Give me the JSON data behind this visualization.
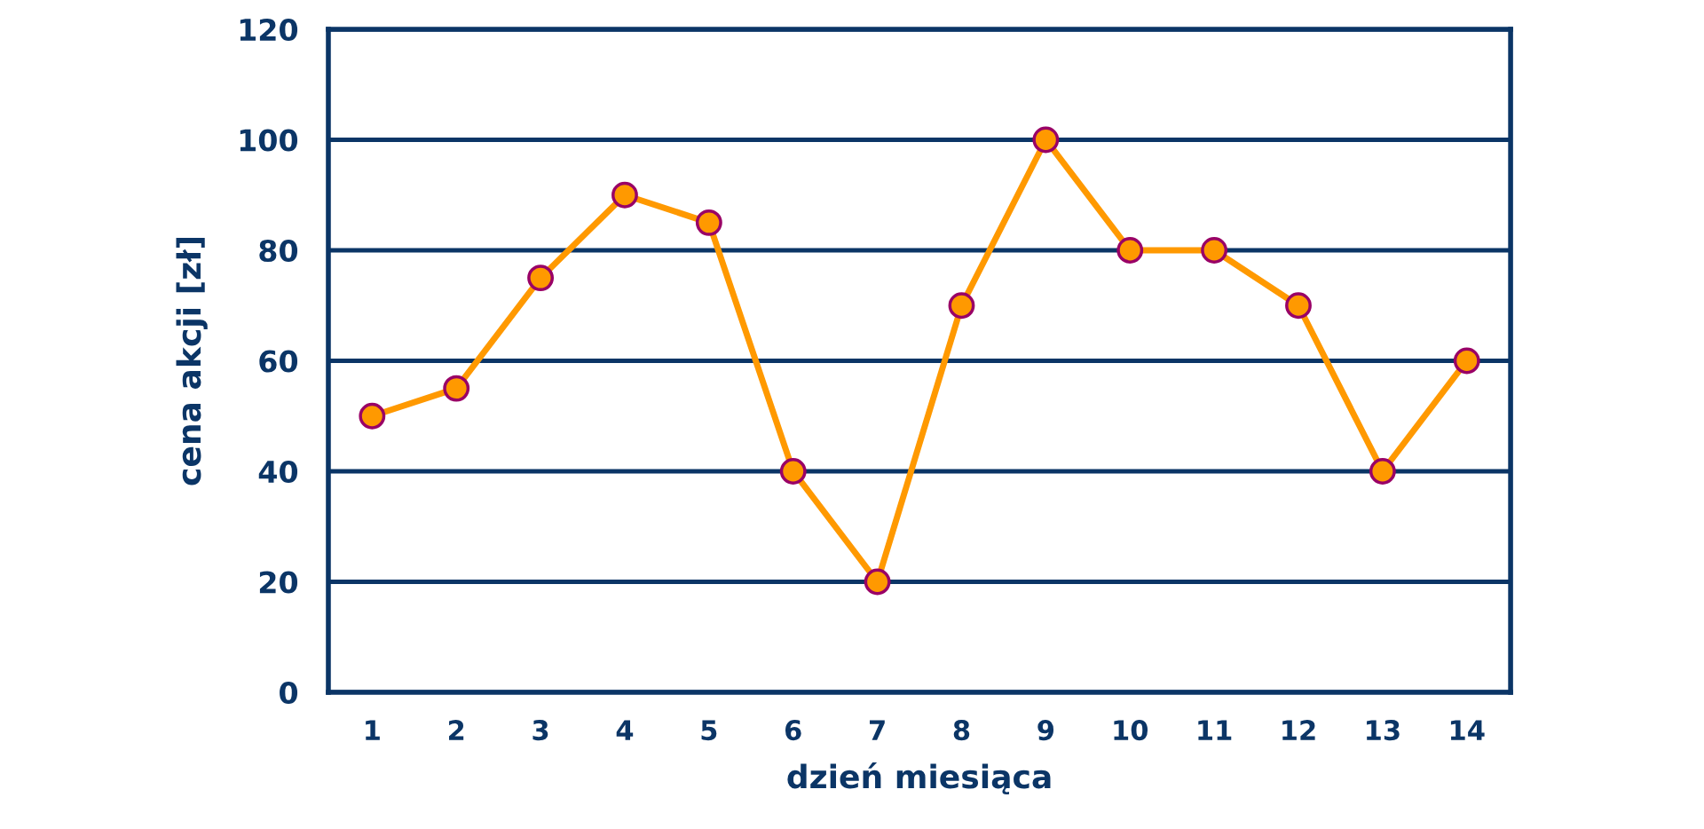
{
  "chart_data": {
    "type": "line",
    "xlabel": "dzień miesiąca",
    "ylabel": "cena akcji [zł]",
    "categories": [
      "1",
      "2",
      "3",
      "4",
      "5",
      "6",
      "7",
      "8",
      "9",
      "10",
      "11",
      "12",
      "13",
      "14"
    ],
    "series": [
      {
        "color": "#ff9900",
        "values": [
          50,
          55,
          75,
          90,
          85,
          40,
          20,
          70,
          100,
          80,
          80,
          70,
          40,
          60
        ]
      }
    ],
    "ylim": [
      0,
      120
    ],
    "yticks": [
      0,
      20,
      40,
      60,
      80,
      100,
      120
    ],
    "grid": "y",
    "marker": "circle",
    "line_style": "solid"
  }
}
